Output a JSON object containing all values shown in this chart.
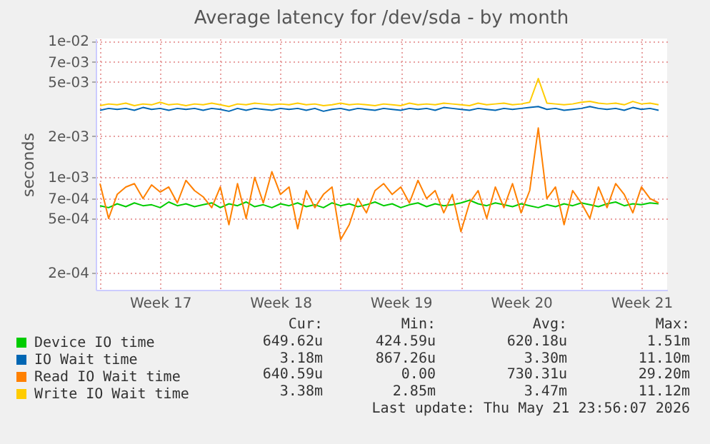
{
  "chart_data": {
    "type": "line",
    "title": "Average latency for /dev/sda - by month",
    "ylabel": "seconds",
    "log": "y",
    "grid": true,
    "legend": "bottom left",
    "xlim": [
      "2026-04-18T18:00",
      "2026-05-21T23:56"
    ],
    "ylim": [
      0.00015,
      0.0104
    ],
    "xticks": [
      {
        "value": "2026-04-19T00:00",
        "label": null
      },
      {
        "value": "2026-04-22T12:00",
        "label": "Week 17"
      },
      {
        "value": "2026-04-26T00:00",
        "label": null
      },
      {
        "value": "2026-04-29T12:00",
        "label": "Week 18"
      },
      {
        "value": "2026-05-03T00:00",
        "label": null
      },
      {
        "value": "2026-05-06T12:00",
        "label": "Week 19"
      },
      {
        "value": "2026-05-10T00:00",
        "label": null
      },
      {
        "value": "2026-05-13T12:00",
        "label": "Week 20"
      },
      {
        "value": "2026-05-17T00:00",
        "label": null
      },
      {
        "value": "2026-05-20T12:00",
        "label": "Week 21"
      }
    ],
    "yticks": [
      {
        "value": 0.0002,
        "label": "2e-04"
      },
      {
        "value": 0.0005,
        "label": "5e-04"
      },
      {
        "value": 0.0007,
        "label": "7e-04"
      },
      {
        "value": 0.001,
        "label": "1e-03"
      },
      {
        "value": 0.002,
        "label": "2e-03"
      },
      {
        "value": 0.005,
        "label": "5e-03"
      },
      {
        "value": 0.007,
        "label": "7e-03"
      },
      {
        "value": 0.01,
        "label": "1e-02"
      }
    ],
    "x": [
      "2026-04-19T00:00",
      "2026-04-19T12:00",
      "2026-04-20T00:00",
      "2026-04-20T12:00",
      "2026-04-21T00:00",
      "2026-04-21T12:00",
      "2026-04-22T00:00",
      "2026-04-22T12:00",
      "2026-04-23T00:00",
      "2026-04-23T12:00",
      "2026-04-24T00:00",
      "2026-04-24T12:00",
      "2026-04-25T00:00",
      "2026-04-25T12:00",
      "2026-04-26T00:00",
      "2026-04-26T12:00",
      "2026-04-27T00:00",
      "2026-04-27T12:00",
      "2026-04-28T00:00",
      "2026-04-28T12:00",
      "2026-04-29T00:00",
      "2026-04-29T12:00",
      "2026-04-30T00:00",
      "2026-04-30T12:00",
      "2026-05-01T00:00",
      "2026-05-01T12:00",
      "2026-05-02T00:00",
      "2026-05-02T12:00",
      "2026-05-03T00:00",
      "2026-05-03T12:00",
      "2026-05-04T00:00",
      "2026-05-04T12:00",
      "2026-05-05T00:00",
      "2026-05-05T12:00",
      "2026-05-06T00:00",
      "2026-05-06T12:00",
      "2026-05-07T00:00",
      "2026-05-07T12:00",
      "2026-05-08T00:00",
      "2026-05-08T12:00",
      "2026-05-09T00:00",
      "2026-05-09T12:00",
      "2026-05-10T00:00",
      "2026-05-10T12:00",
      "2026-05-11T00:00",
      "2026-05-11T12:00",
      "2026-05-12T00:00",
      "2026-05-12T12:00",
      "2026-05-13T00:00",
      "2026-05-13T12:00",
      "2026-05-14T00:00",
      "2026-05-14T12:00",
      "2026-05-15T00:00",
      "2026-05-15T12:00",
      "2026-05-16T00:00",
      "2026-05-16T12:00",
      "2026-05-17T00:00",
      "2026-05-17T12:00",
      "2026-05-18T00:00",
      "2026-05-18T12:00",
      "2026-05-19T00:00",
      "2026-05-19T12:00",
      "2026-05-20T00:00",
      "2026-05-20T12:00",
      "2026-05-21T00:00",
      "2026-05-21T12:00"
    ],
    "series": [
      {
        "name": "Device IO time",
        "color": "#00cc00",
        "values": [
          0.00062,
          0.0006,
          0.00064,
          0.00061,
          0.00065,
          0.00062,
          0.00063,
          0.0006,
          0.00066,
          0.00062,
          0.00064,
          0.00061,
          0.00063,
          0.00065,
          0.0006,
          0.00064,
          0.00062,
          0.00066,
          0.00061,
          0.00063,
          0.0006,
          0.00064,
          0.00062,
          0.00065,
          0.00061,
          0.00063,
          0.0006,
          0.00065,
          0.00062,
          0.00064,
          0.00061,
          0.00063,
          0.00066,
          0.00062,
          0.00064,
          0.0006,
          0.00063,
          0.00065,
          0.00061,
          0.00064,
          0.00062,
          0.00063,
          0.00065,
          0.00068,
          0.00064,
          0.00062,
          0.00065,
          0.00063,
          0.00061,
          0.00064,
          0.00062,
          0.0006,
          0.00063,
          0.00061,
          0.00064,
          0.00062,
          0.00065,
          0.00063,
          0.00061,
          0.00064,
          0.00066,
          0.00062,
          0.00064,
          0.00063,
          0.00065,
          0.00064
        ]
      },
      {
        "name": "IO Wait time",
        "color": "#0066b3",
        "values": [
          0.0031,
          0.0032,
          0.00315,
          0.0032,
          0.0031,
          0.00325,
          0.00315,
          0.0032,
          0.0031,
          0.0032,
          0.00315,
          0.0032,
          0.0031,
          0.0032,
          0.00315,
          0.00305,
          0.0032,
          0.0031,
          0.0032,
          0.00315,
          0.0031,
          0.0032,
          0.00315,
          0.0032,
          0.0031,
          0.0032,
          0.00305,
          0.00315,
          0.0032,
          0.0031,
          0.0032,
          0.00315,
          0.0031,
          0.0032,
          0.00315,
          0.0031,
          0.0032,
          0.00315,
          0.0032,
          0.0031,
          0.00325,
          0.0032,
          0.00315,
          0.0031,
          0.0032,
          0.00315,
          0.0031,
          0.0032,
          0.00315,
          0.0032,
          0.00325,
          0.0033,
          0.00315,
          0.0032,
          0.0031,
          0.00315,
          0.0032,
          0.0033,
          0.0032,
          0.00315,
          0.0032,
          0.0031,
          0.00325,
          0.00315,
          0.0032,
          0.0031
        ]
      },
      {
        "name": "Read IO Wait time",
        "color": "#ff8000",
        "values": [
          0.0009,
          0.0005,
          0.00075,
          0.00085,
          0.0009,
          0.0007,
          0.00088,
          0.00078,
          0.00085,
          0.00065,
          0.00095,
          0.0008,
          0.00072,
          0.0006,
          0.00085,
          0.00045,
          0.0009,
          0.0005,
          0.001,
          0.00065,
          0.0011,
          0.00075,
          0.00085,
          0.00042,
          0.0008,
          0.0006,
          0.00075,
          0.00085,
          0.00035,
          0.00045,
          0.0007,
          0.00055,
          0.0008,
          0.0009,
          0.00075,
          0.00085,
          0.00065,
          0.00095,
          0.0007,
          0.0008,
          0.00055,
          0.00075,
          0.0004,
          0.00065,
          0.0008,
          0.0005,
          0.00085,
          0.0006,
          0.0009,
          0.00055,
          0.0008,
          0.0023,
          0.0007,
          0.00085,
          0.00045,
          0.0008,
          0.00065,
          0.0005,
          0.00085,
          0.0006,
          0.0009,
          0.00075,
          0.00055,
          0.00085,
          0.0007,
          0.00065
        ]
      },
      {
        "name": "Write IO Wait time",
        "color": "#ffcc00",
        "values": [
          0.00335,
          0.00345,
          0.0034,
          0.0035,
          0.00335,
          0.00345,
          0.0034,
          0.00355,
          0.0034,
          0.00345,
          0.00335,
          0.00345,
          0.0034,
          0.0035,
          0.0034,
          0.0033,
          0.00345,
          0.0034,
          0.0035,
          0.00345,
          0.0034,
          0.00345,
          0.0034,
          0.0035,
          0.0034,
          0.00345,
          0.00335,
          0.0034,
          0.0035,
          0.0034,
          0.00345,
          0.0034,
          0.00335,
          0.00345,
          0.0034,
          0.00335,
          0.0035,
          0.0034,
          0.00345,
          0.0034,
          0.0035,
          0.00345,
          0.0034,
          0.00335,
          0.0035,
          0.0034,
          0.00345,
          0.0035,
          0.0034,
          0.00345,
          0.00355,
          0.0053,
          0.0035,
          0.00345,
          0.0034,
          0.00345,
          0.00355,
          0.0036,
          0.0035,
          0.00345,
          0.0035,
          0.0034,
          0.0036,
          0.00345,
          0.0035,
          0.0034
        ]
      }
    ],
    "annotations": [
      "Cur:",
      "Min:",
      "Avg:",
      "Max:",
      "649.62u",
      "424.59u",
      "620.18u",
      "1.51m",
      "3.18m",
      "867.26u",
      "3.30m",
      "11.10m",
      "640.59u",
      "0.00",
      "730.31u",
      "29.20m",
      "3.38m",
      "2.85m",
      "3.47m",
      "11.12m",
      "Last update: Thu May 21 23:56:07 2026"
    ]
  }
}
